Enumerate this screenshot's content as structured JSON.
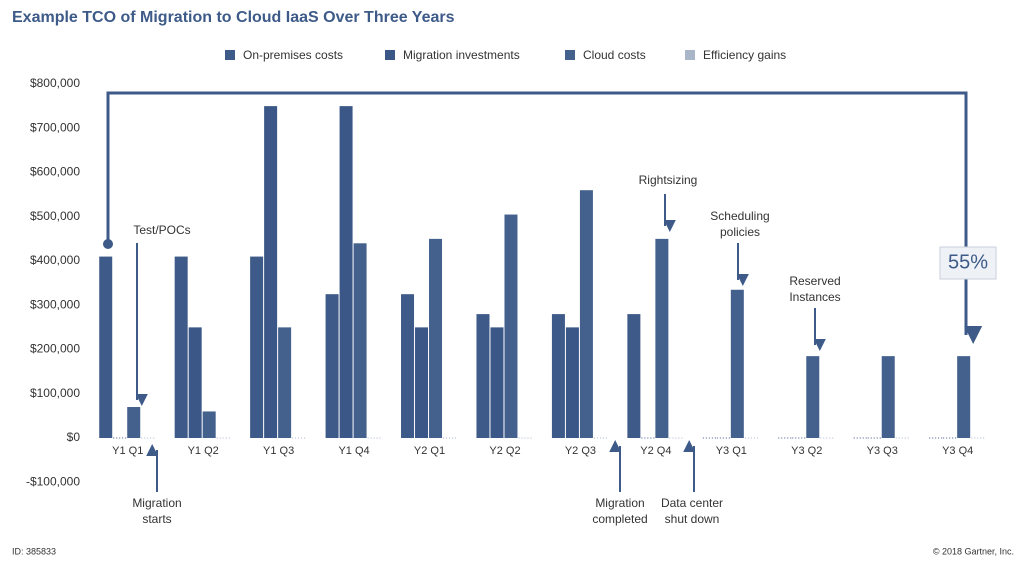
{
  "chart_data": {
    "type": "bar",
    "title": "Example TCO of Migration to Cloud IaaS Over Three Years",
    "categories": [
      "Y1 Q1",
      "Y1 Q2",
      "Y1 Q3",
      "Y1 Q4",
      "Y2 Q1",
      "Y2 Q2",
      "Y2 Q3",
      "Y2 Q4",
      "Y3 Q1",
      "Y3 Q2",
      "Y3 Q3",
      "Y3 Q4"
    ],
    "series": [
      {
        "name": "On-premises costs",
        "color": "#3d5a88",
        "values": [
          410000,
          410000,
          410000,
          325000,
          325000,
          280000,
          280000,
          280000,
          0,
          0,
          0,
          0
        ]
      },
      {
        "name": "Migration investments",
        "color": "#3a5787",
        "values": [
          0,
          250000,
          750000,
          750000,
          250000,
          250000,
          250000,
          0,
          0,
          0,
          0,
          0
        ]
      },
      {
        "name": "Cloud costs",
        "color": "#44608c",
        "values": [
          70000,
          60000,
          250000,
          440000,
          450000,
          505000,
          560000,
          450000,
          335000,
          185000,
          185000,
          185000
        ]
      },
      {
        "name": "Efficiency gains",
        "color": "#a9b6c8",
        "values": [
          0,
          0,
          0,
          0,
          0,
          0,
          0,
          0,
          0,
          0,
          0,
          0
        ]
      }
    ],
    "ylim": [
      -100000,
      800000
    ],
    "yticks": [
      {
        "value": -100000,
        "label": "-$100,000"
      },
      {
        "value": 0,
        "label": "$0"
      },
      {
        "value": 100000,
        "label": "$100,000"
      },
      {
        "value": 200000,
        "label": "$200,000"
      },
      {
        "value": 300000,
        "label": "$300,000"
      },
      {
        "value": 400000,
        "label": "$400,000"
      },
      {
        "value": 500000,
        "label": "$500,000"
      },
      {
        "value": 600000,
        "label": "$600,000"
      },
      {
        "value": 700000,
        "label": "$700,000"
      },
      {
        "value": 800000,
        "label": "$800,000"
      }
    ],
    "annotations": [
      [
        "Test/POCs"
      ],
      [
        "Migration",
        "starts"
      ],
      [
        "Rightsizing"
      ],
      [
        "Scheduling",
        "policies"
      ],
      [
        "Reserved",
        "Instances"
      ],
      [
        "Migration",
        "completed"
      ],
      [
        "Data center",
        "shut down"
      ],
      [
        "55%"
      ]
    ],
    "footer_left": "ID: 385833",
    "footer_right": "© 2018 Gartner, Inc."
  }
}
